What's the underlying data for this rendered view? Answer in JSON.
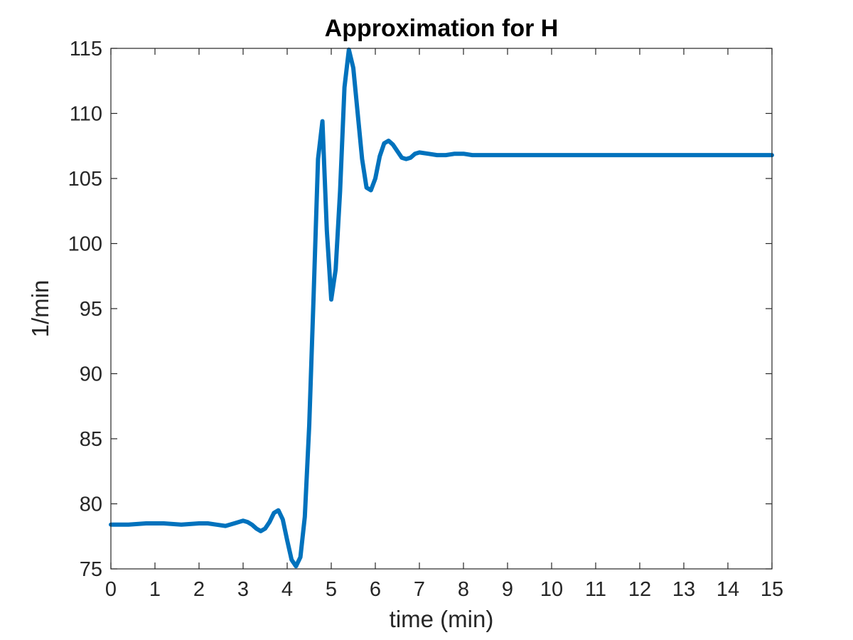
{
  "chart_data": {
    "type": "line",
    "title": "Approximation for H",
    "xlabel": "time (min)",
    "ylabel": "1/min",
    "xlim": [
      0,
      15
    ],
    "ylim": [
      75,
      115
    ],
    "xticks": [
      0,
      1,
      2,
      3,
      4,
      5,
      6,
      7,
      8,
      9,
      10,
      11,
      12,
      13,
      14,
      15
    ],
    "yticks": [
      75,
      80,
      85,
      90,
      95,
      100,
      105,
      110,
      115
    ],
    "grid": false,
    "line_color": "#0072BD",
    "series": [
      {
        "x": [
          0,
          0.4,
          0.8,
          1.2,
          1.6,
          2.0,
          2.2,
          2.4,
          2.6,
          2.8,
          3.0,
          3.1,
          3.2,
          3.3,
          3.4,
          3.5,
          3.6,
          3.7,
          3.8,
          3.9,
          4.0,
          4.1,
          4.2,
          4.3,
          4.4,
          4.5,
          4.6,
          4.7,
          4.8,
          4.9,
          5.0,
          5.1,
          5.2,
          5.3,
          5.4,
          5.5,
          5.6,
          5.7,
          5.8,
          5.9,
          6.0,
          6.1,
          6.2,
          6.3,
          6.4,
          6.5,
          6.6,
          6.7,
          6.8,
          6.9,
          7.0,
          7.2,
          7.4,
          7.6,
          7.8,
          8.0,
          8.2,
          8.5,
          8.8,
          9.2,
          9.6,
          10.0,
          11.0,
          12.0,
          13.0,
          14.0,
          15.0
        ],
        "y": [
          78.4,
          78.4,
          78.5,
          78.5,
          78.4,
          78.5,
          78.5,
          78.4,
          78.3,
          78.5,
          78.7,
          78.6,
          78.4,
          78.1,
          77.9,
          78.1,
          78.6,
          79.3,
          79.5,
          78.8,
          77.2,
          75.7,
          75.2,
          75.9,
          79.0,
          86.0,
          96.0,
          106.5,
          109.4,
          101.0,
          95.7,
          98.0,
          104.0,
          112.0,
          114.9,
          113.5,
          110.0,
          106.5,
          104.3,
          104.1,
          105.0,
          106.7,
          107.7,
          107.9,
          107.6,
          107.1,
          106.6,
          106.5,
          106.6,
          106.9,
          107.0,
          106.9,
          106.8,
          106.8,
          106.9,
          106.9,
          106.8,
          106.8,
          106.8,
          106.8,
          106.8,
          106.8,
          106.8,
          106.8,
          106.8,
          106.8,
          106.8
        ]
      }
    ]
  }
}
